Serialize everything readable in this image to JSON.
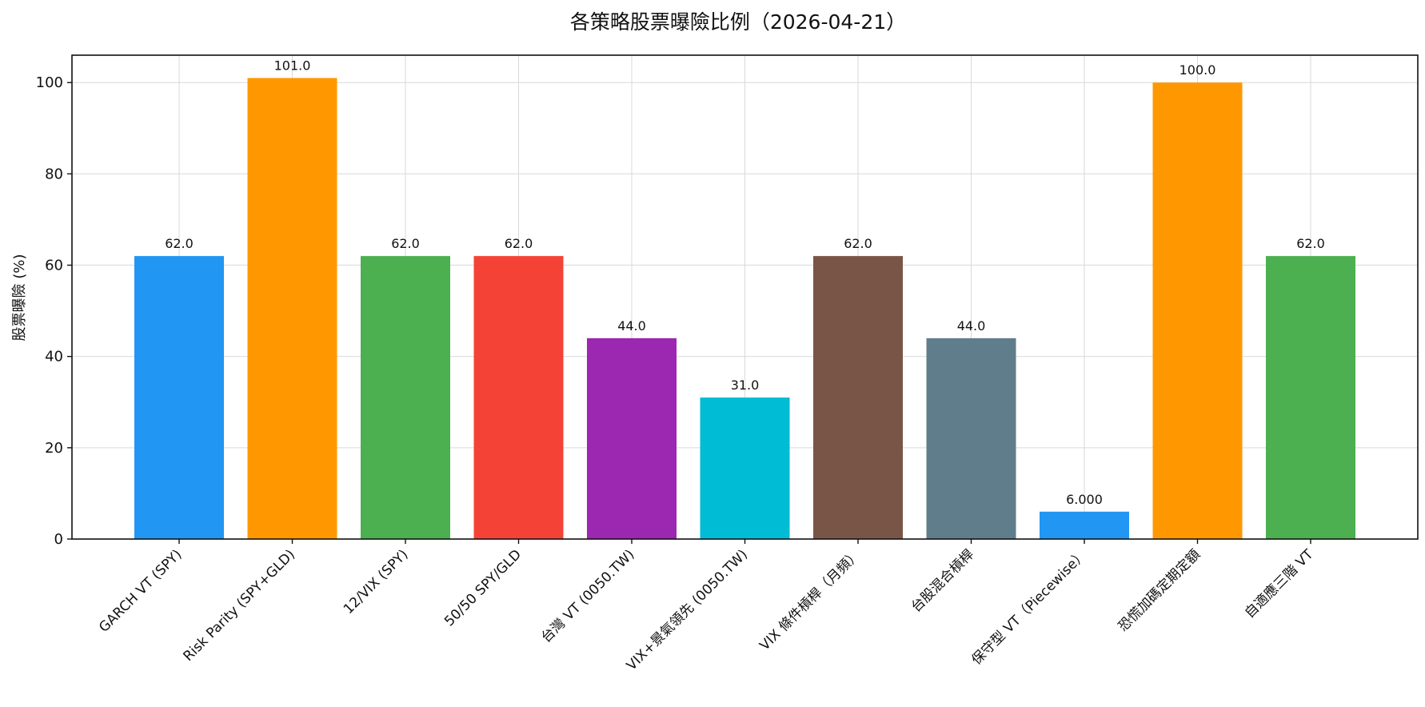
{
  "chart_data": {
    "type": "bar",
    "title": "各策略股票曝險比例（2026-04-21）",
    "xlabel": "",
    "ylabel": "股票曝險 (%)",
    "ylim": [
      0,
      106
    ],
    "yticks": [
      "0",
      "20",
      "40",
      "60",
      "80",
      "100"
    ],
    "grid": true,
    "legend": "none",
    "categories": [
      "GARCH VT (SPY)",
      "Risk Parity (SPY+GLD)",
      "12/VIX (SPY)",
      "50/50 SPY/GLD",
      "台灣 VT (0050.TW)",
      "VIX+景氣領先 (0050.TW)",
      "VIX 條件槓桿（月頻）",
      "台股混合槓桿",
      "保守型 VT（Piecewise）",
      "恐慌加碼定期定額",
      "自適應三階 VT"
    ],
    "values": [
      62.0,
      101.0,
      62.0,
      62.0,
      44.0,
      31.0,
      62.0,
      44.0,
      6.0,
      100.0,
      62.0
    ],
    "value_labels": [
      "62.0",
      "101.0",
      "62.0",
      "62.0",
      "44.0",
      "31.0",
      "62.0",
      "44.0",
      "6.000",
      "100.0",
      "62.0"
    ],
    "colors": [
      "#2196F3",
      "#FF9800",
      "#4CAF50",
      "#F44336",
      "#9C27B0",
      "#00BCD4",
      "#795548",
      "#607D8B",
      "#2196F3",
      "#FF9800",
      "#4CAF50"
    ]
  }
}
